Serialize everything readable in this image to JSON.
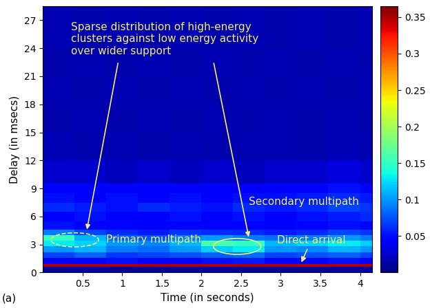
{
  "chart_data": {
    "type": "heatmap",
    "xlabel": "Time (in seconds)",
    "ylabel": "Delay (in msecs)",
    "xlim": [
      0,
      4.15
    ],
    "ylim": [
      0,
      28.5
    ],
    "xticks": [
      0.5,
      1,
      1.5,
      2,
      2.5,
      3,
      3.5,
      4
    ],
    "yticks": [
      0,
      3,
      6,
      9,
      12,
      15,
      18,
      21,
      24,
      27
    ],
    "x_edges": [
      0,
      0.4,
      0.8,
      1.2,
      1.6,
      2.0,
      2.4,
      2.8,
      3.2,
      3.6,
      4.0,
      4.15
    ],
    "y_edges": [
      0,
      0.65,
      0.95,
      1.6,
      2.2,
      2.8,
      3.4,
      4.0,
      4.6,
      5.5,
      6.5,
      7.5,
      8.5,
      9.5,
      12,
      15,
      18,
      21,
      24,
      28.5
    ],
    "cells": [
      [
        0.01,
        0.012,
        0.01,
        0.011,
        0.01,
        0.012,
        0.01,
        0.011,
        0.01,
        0.012,
        0.01
      ],
      [
        0.35,
        0.348,
        0.35,
        0.352,
        0.35,
        0.349,
        0.351,
        0.35,
        0.348,
        0.35,
        0.35
      ],
      [
        0.04,
        0.045,
        0.05,
        0.04,
        0.045,
        0.05,
        0.055,
        0.045,
        0.04,
        0.05,
        0.045
      ],
      [
        0.07,
        0.08,
        0.065,
        0.07,
        0.075,
        0.08,
        0.085,
        0.07,
        0.075,
        0.08,
        0.07
      ],
      [
        0.1,
        0.11,
        0.09,
        0.085,
        0.1,
        0.12,
        0.13,
        0.1,
        0.095,
        0.11,
        0.1
      ],
      [
        0.13,
        0.12,
        0.1,
        0.095,
        0.11,
        0.16,
        0.15,
        0.11,
        0.12,
        0.13,
        0.12
      ],
      [
        0.15,
        0.11,
        0.08,
        0.075,
        0.09,
        0.1,
        0.09,
        0.085,
        0.09,
        0.1,
        0.09
      ],
      [
        0.09,
        0.07,
        0.06,
        0.055,
        0.065,
        0.06,
        0.06,
        0.055,
        0.06,
        0.07,
        0.065
      ],
      [
        0.05,
        0.045,
        0.04,
        0.04,
        0.045,
        0.04,
        0.045,
        0.04,
        0.045,
        0.05,
        0.045
      ],
      [
        0.045,
        0.05,
        0.04,
        0.045,
        0.05,
        0.045,
        0.05,
        0.045,
        0.05,
        0.055,
        0.06
      ],
      [
        0.06,
        0.055,
        0.05,
        0.06,
        0.055,
        0.05,
        0.06,
        0.055,
        0.06,
        0.07,
        0.065
      ],
      [
        0.05,
        0.045,
        0.05,
        0.045,
        0.05,
        0.045,
        0.05,
        0.05,
        0.055,
        0.06,
        0.055
      ],
      [
        0.04,
        0.045,
        0.04,
        0.045,
        0.04,
        0.04,
        0.045,
        0.04,
        0.045,
        0.05,
        0.045
      ],
      [
        0.025,
        0.025,
        0.02,
        0.025,
        0.02,
        0.025,
        0.02,
        0.025,
        0.025,
        0.03,
        0.025
      ],
      [
        0.018,
        0.015,
        0.017,
        0.015,
        0.016,
        0.015,
        0.017,
        0.016,
        0.015,
        0.018,
        0.016
      ],
      [
        0.015,
        0.017,
        0.015,
        0.016,
        0.015,
        0.017,
        0.015,
        0.016,
        0.015,
        0.017,
        0.015
      ],
      [
        0.016,
        0.015,
        0.017,
        0.015,
        0.016,
        0.015,
        0.016,
        0.015,
        0.017,
        0.015,
        0.016
      ],
      [
        0.015,
        0.016,
        0.015,
        0.017,
        0.015,
        0.016,
        0.015,
        0.017,
        0.015,
        0.016,
        0.015
      ],
      [
        0.016,
        0.015,
        0.016,
        0.015,
        0.017,
        0.015,
        0.016,
        0.015,
        0.016,
        0.015,
        0.017
      ]
    ],
    "colorbar_range": [
      0,
      0.365
    ],
    "colorbar_ticks": [
      0.05,
      0.1,
      0.15,
      0.2,
      0.25,
      0.3,
      0.35
    ],
    "annotations": [
      "Sparse distribution of high-energy\nclusters against low energy activity\nover wider support",
      "Primary multipath",
      "Secondary multipath",
      "Direct arrival"
    ],
    "panel_label": "(a)"
  }
}
